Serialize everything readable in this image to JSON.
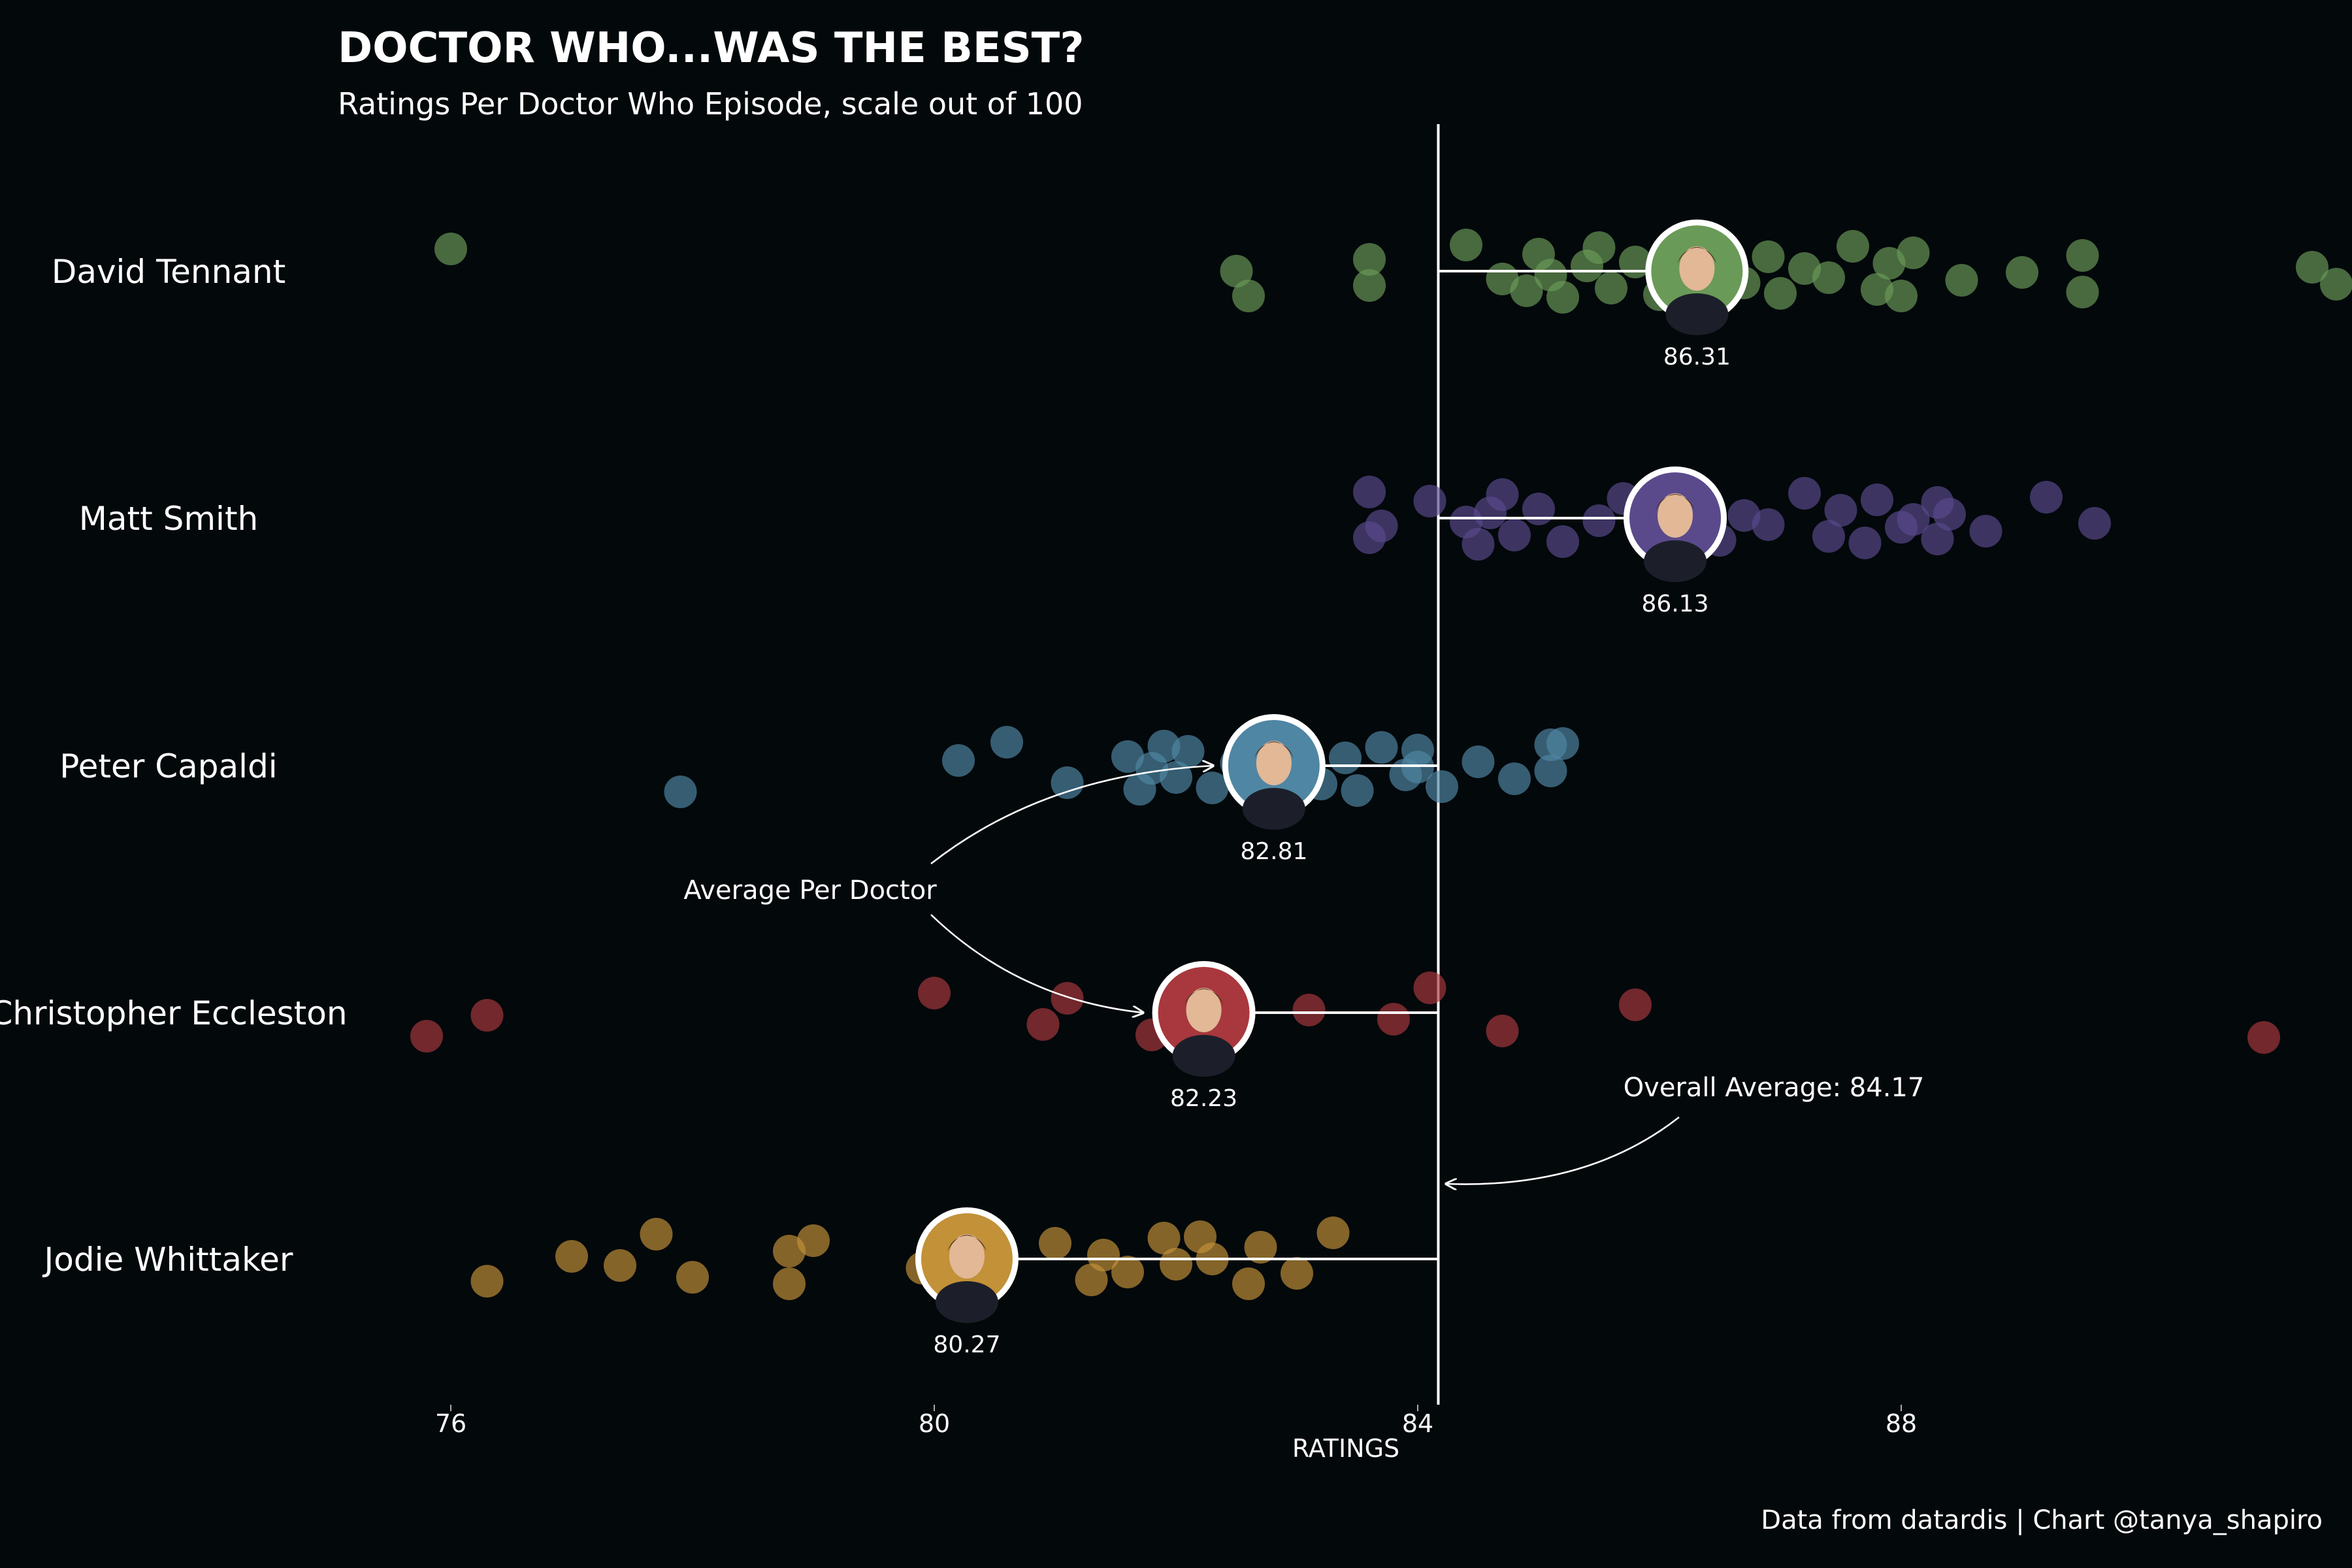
{
  "chart_data": {
    "type": "scatter",
    "title": "DOCTOR WHO...WAS THE BEST?",
    "subtitle": "Ratings Per Doctor Who Episode, scale out of 100",
    "xlabel": "RATINGS",
    "xlim": [
      75.9,
      92.2
    ],
    "x_ticks": [
      76,
      80,
      84,
      88
    ],
    "overall_average": 84.17,
    "overall_average_label": "Overall Average: 84.17",
    "average_annotation": "Average Per Doctor",
    "caption": "Data from datardis | Chart @tanya_shapiro",
    "series": [
      {
        "name": "David Tennant",
        "color": "#6a9a57",
        "average": 86.31,
        "average_label": "86.31",
        "values": [
          76,
          82.5,
          82.6,
          83.6,
          83.6,
          84.4,
          84.7,
          84.9,
          85,
          85.1,
          85.2,
          85.4,
          85.5,
          85.6,
          85.8,
          86,
          86.2,
          86.5,
          86.7,
          86.9,
          87,
          87.2,
          87.4,
          87.6,
          87.8,
          87.9,
          88.0,
          88.1,
          88.5,
          89.0,
          89.5,
          89.5,
          91.4,
          91.6
        ]
      },
      {
        "name": "Matt Smith",
        "color": "#5a4a8c",
        "average": 86.13,
        "average_label": "86.13",
        "values": [
          83.6,
          83.7,
          83.6,
          84.1,
          84.4,
          84.5,
          84.6,
          84.7,
          84.8,
          85.0,
          85.2,
          85.5,
          85.7,
          86.0,
          86.2,
          86.5,
          86.7,
          86.9,
          87.2,
          87.4,
          87.5,
          87.7,
          87.8,
          88.0,
          88.1,
          88.3,
          88.3,
          88.4,
          88.7,
          89.2,
          89.6
        ]
      },
      {
        "name": "Peter Capaldi",
        "color": "#4f86a3",
        "average": 82.81,
        "average_label": "82.81",
        "values": [
          77.9,
          80.2,
          80.6,
          81.1,
          81.6,
          81.7,
          81.8,
          81.9,
          82.0,
          82.1,
          82.3,
          82.5,
          82.7,
          83.0,
          83.2,
          83.4,
          83.5,
          83.7,
          83.9,
          84.0,
          84.0,
          84.2,
          84.5,
          84.8,
          85.1,
          85.1,
          85.2
        ]
      },
      {
        "name": "Christopher Eccleston",
        "color": "#a8383d",
        "average": 82.23,
        "average_label": "82.23",
        "values": [
          75.8,
          76.3,
          80.0,
          80.9,
          81.1,
          81.8,
          83.1,
          83.8,
          84.1,
          84.7,
          85.8,
          91.0
        ]
      },
      {
        "name": "Jodie Whittaker",
        "color": "#c29138",
        "average": 80.27,
        "average_label": "80.27",
        "values": [
          76.3,
          77.0,
          77.4,
          77.7,
          78.0,
          78.8,
          78.8,
          79.0,
          79.9,
          80.2,
          81.0,
          81.3,
          81.4,
          81.6,
          81.9,
          82.0,
          82.2,
          82.3,
          82.6,
          82.7,
          83.0,
          83.3
        ]
      }
    ]
  }
}
